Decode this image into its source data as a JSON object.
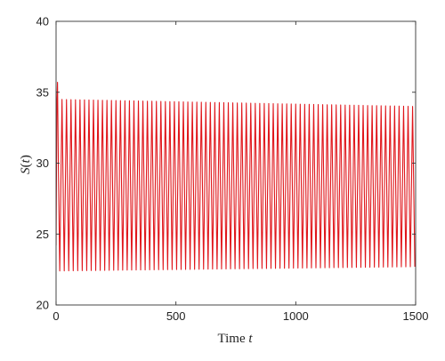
{
  "chart_data": {
    "type": "line",
    "xlabel": {
      "text": "Time ",
      "var": "t"
    },
    "ylabel": {
      "func": "S",
      "open": "(",
      "var": "t",
      "close": ")"
    },
    "xlim": [
      0,
      1500
    ],
    "ylim": [
      20,
      40
    ],
    "xticks": [
      0,
      500,
      1000,
      1500
    ],
    "yticks": [
      20,
      25,
      30,
      35,
      40
    ],
    "xtick_labels": [
      "0",
      "500",
      "1000",
      "1500"
    ],
    "ytick_labels": [
      "20",
      "25",
      "30",
      "35",
      "40"
    ],
    "grid": false,
    "series": [
      {
        "color": "#e0161b",
        "description": "sustained oscillation",
        "start_value": 24.2,
        "first_peak": 35.7,
        "first_trough": 22.4,
        "period": 18.75,
        "peak_start": 34.5,
        "peak_end": 34.0,
        "trough_start": 22.4,
        "trough_end": 22.7
      }
    ]
  }
}
